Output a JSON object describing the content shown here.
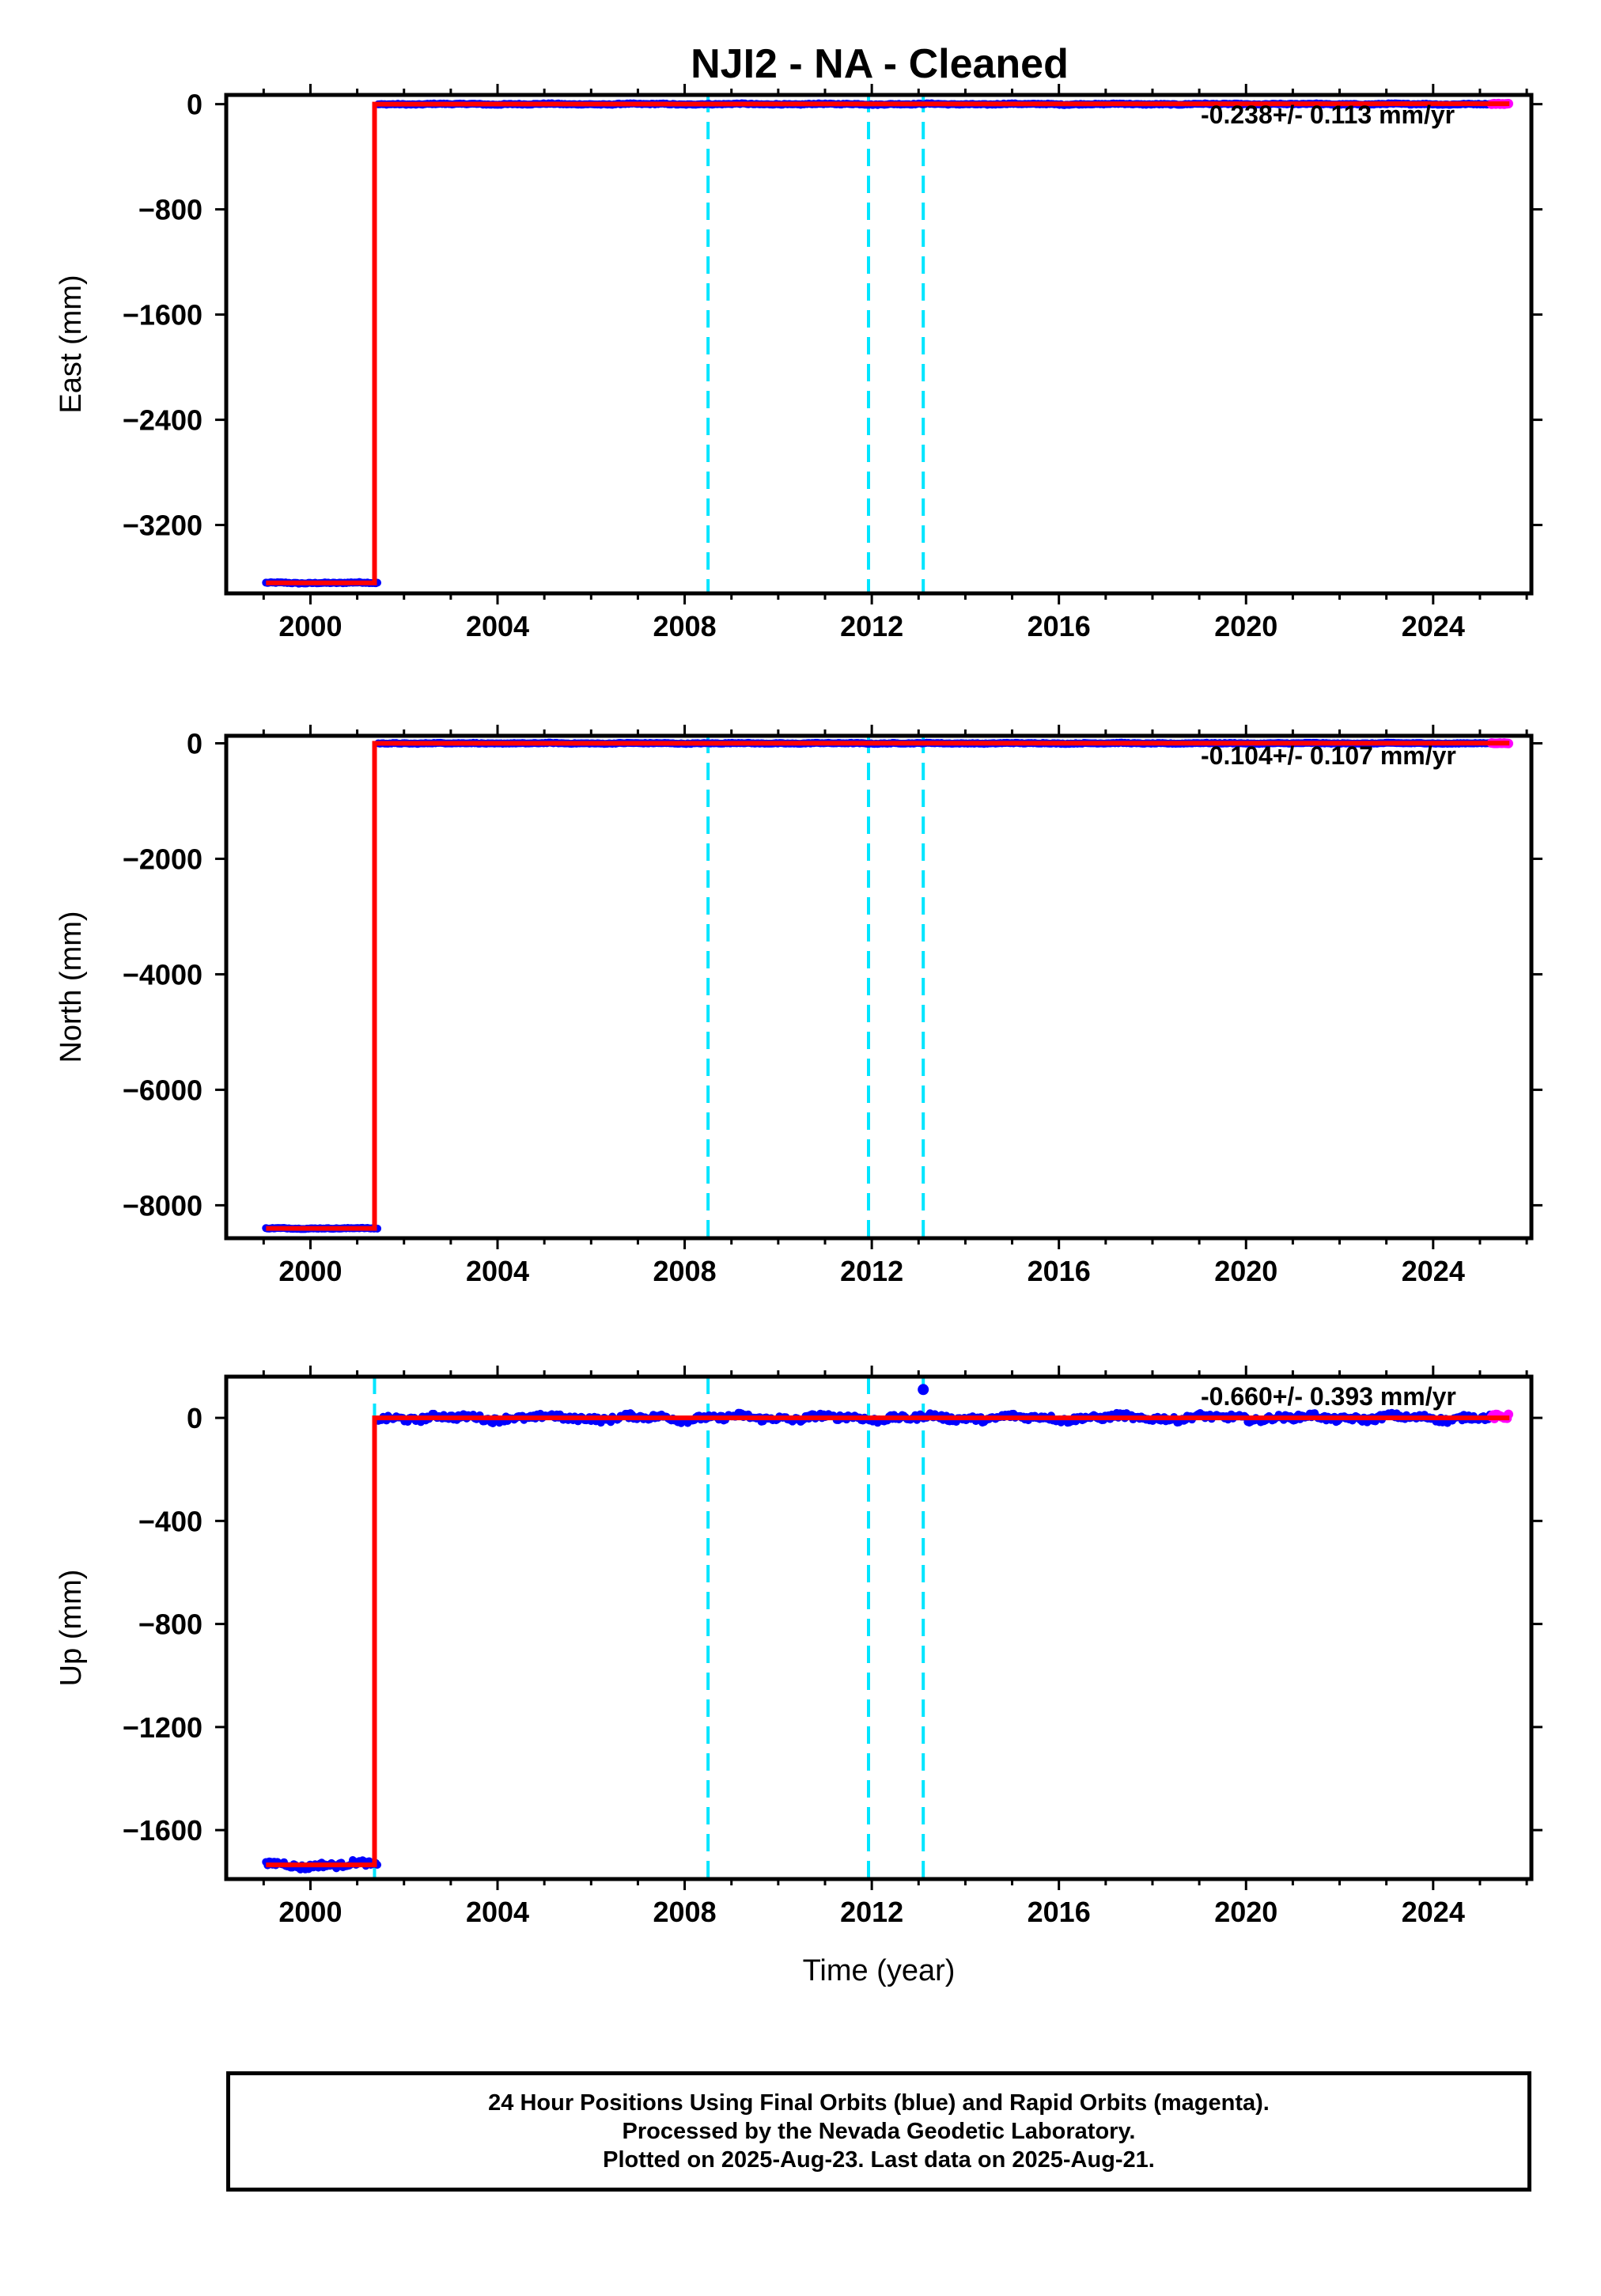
{
  "title": "NJI2  - NA - Cleaned",
  "colors": {
    "final_orbits": "#0000ff",
    "rapid_orbits": "#ff00ff",
    "model": "#ff0000",
    "event_lines": "#00e5ff",
    "axes": "#000000"
  },
  "chart_data": [
    {
      "type": "scatter",
      "ylabel": "East (mm)",
      "xlabel": "",
      "xlim": [
        1998.2,
        2026.1
      ],
      "ylim": [
        -3720,
        70
      ],
      "yticks": [
        0,
        -800,
        -1600,
        -2400,
        -3200
      ],
      "xticks": [
        2000,
        2004,
        2008,
        2012,
        2016,
        2020,
        2024
      ],
      "rate": "-0.238+/- 0.113 mm/yr",
      "noise": 6,
      "events": [
        2008.5,
        2011.93,
        2013.1
      ],
      "series": [
        {
          "name": "Final Orbits",
          "segments": [
            {
              "x": [
                1999.05,
                2001.45
              ],
              "y": -3640
            },
            {
              "x": [
                2001.45,
                2025.25
              ],
              "y": 0
            }
          ]
        },
        {
          "name": "Rapid Orbits",
          "x": [
            2025.25,
            2025.63
          ],
          "y": 2
        }
      ],
      "model": [
        [
          1999.05,
          -3640
        ],
        [
          2001.37,
          -3640
        ],
        [
          2001.37,
          0
        ],
        [
          2025.63,
          3
        ]
      ],
      "outliers": []
    },
    {
      "type": "scatter",
      "ylabel": "North (mm)",
      "xlabel": "",
      "xlim": [
        1998.2,
        2026.1
      ],
      "ylim": [
        -8570,
        130
      ],
      "yticks": [
        0,
        -2000,
        -4000,
        -6000,
        -8000
      ],
      "xticks": [
        2000,
        2004,
        2008,
        2012,
        2016,
        2020,
        2024
      ],
      "rate": "-0.104+/- 0.107 mm/yr",
      "noise": 10,
      "events": [
        2008.5,
        2011.93,
        2013.1
      ],
      "series": [
        {
          "name": "Final Orbits",
          "segments": [
            {
              "x": [
                1999.05,
                2001.45
              ],
              "y": -8400
            },
            {
              "x": [
                2001.45,
                2025.25
              ],
              "y": 0
            }
          ]
        },
        {
          "name": "Rapid Orbits",
          "x": [
            2025.25,
            2025.63
          ],
          "y": 2
        }
      ],
      "model": [
        [
          1999.05,
          -8400
        ],
        [
          2001.37,
          -8400
        ],
        [
          2001.37,
          0
        ],
        [
          2025.63,
          2
        ]
      ],
      "outliers": []
    },
    {
      "type": "scatter",
      "ylabel": "Up (mm)",
      "xlabel": "Time (year)",
      "xlim": [
        1998.2,
        2026.1
      ],
      "ylim": [
        -1790,
        160
      ],
      "yticks": [
        0,
        -400,
        -800,
        -1200,
        -1600
      ],
      "xticks": [
        2000,
        2004,
        2008,
        2012,
        2016,
        2020,
        2024
      ],
      "rate": "-0.660+/- 0.393 mm/yr",
      "noise": 18,
      "events": [
        2001.37,
        2008.5,
        2011.93,
        2013.1
      ],
      "series": [
        {
          "name": "Final Orbits",
          "segments": [
            {
              "x": [
                1999.05,
                2001.45
              ],
              "y": -1735
            },
            {
              "x": [
                2001.45,
                2025.25
              ],
              "y": 0
            }
          ]
        },
        {
          "name": "Rapid Orbits",
          "x": [
            2025.25,
            2025.63
          ],
          "y": 5
        }
      ],
      "model": [
        [
          1999.05,
          -1735
        ],
        [
          2001.37,
          -1735
        ],
        [
          2001.37,
          0
        ],
        [
          2025.63,
          0
        ]
      ],
      "outliers": [
        [
          2013.1,
          110
        ]
      ]
    }
  ],
  "footer": {
    "line1": "24 Hour Positions Using Final Orbits (blue) and Rapid Orbits (magenta).",
    "line2": "Processed by the Nevada Geodetic Laboratory.",
    "line3": "Plotted on 2025-Aug-23. Last data on 2025-Aug-21."
  }
}
